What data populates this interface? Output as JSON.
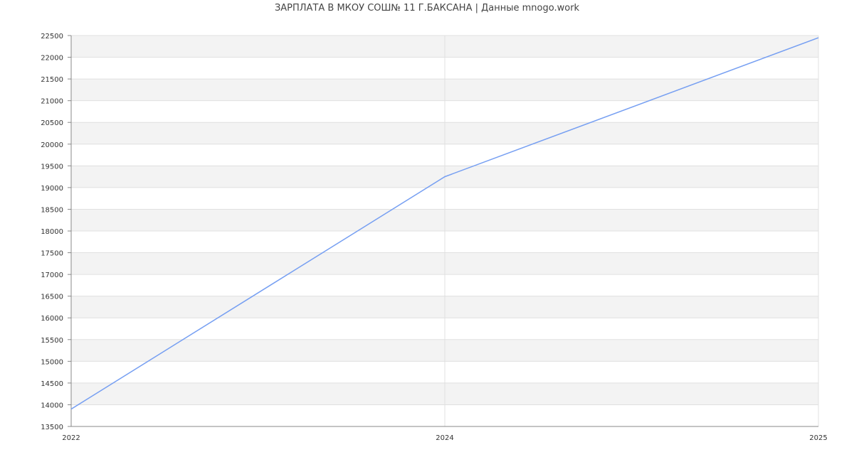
{
  "chart_data": {
    "type": "line",
    "title": "ЗАРПЛАТА В МКОУ СОШ№ 11 Г.БАКСАНА | Данные mnogo.work",
    "categories": [
      "2022",
      "2024",
      "2025"
    ],
    "series": [
      {
        "values": [
          13900,
          19250,
          22450
        ]
      }
    ],
    "ylim": [
      13500,
      22500
    ],
    "ytick_step": 500,
    "xlabel": "",
    "ylabel": "",
    "grid": true,
    "legend": "none",
    "colors": {
      "line": "#769ff2",
      "band": "#f3f3f3",
      "grid": "#e0e0e0",
      "axis": "#888888"
    }
  }
}
